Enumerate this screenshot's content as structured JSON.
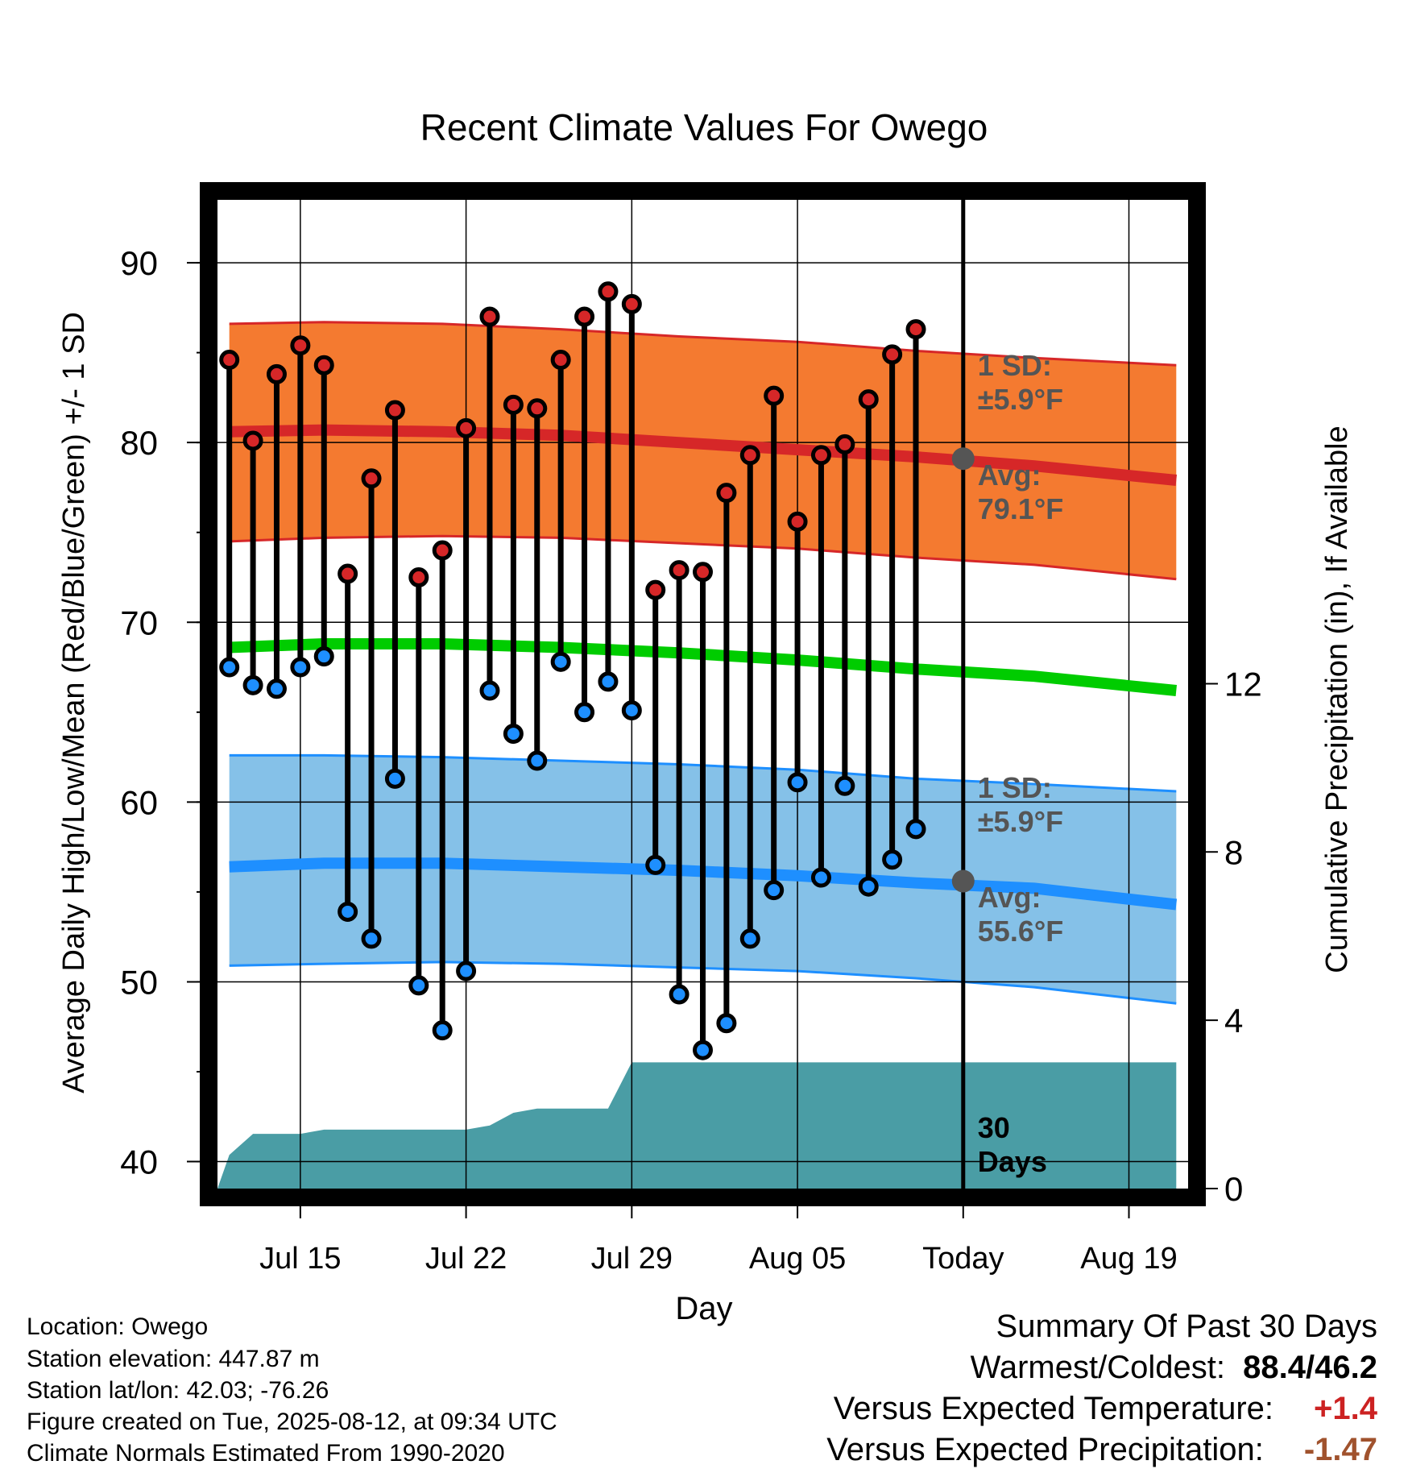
{
  "chart_data": {
    "type": "line",
    "title": "Recent Climate Values For Owego",
    "xlabel": "Day",
    "ylabel": "Average Daily High/Low/Mean (Red/Blue/Green) +/- 1 SD",
    "y2label": "Cumulative Precipitation (in), If Available",
    "x_tick_labels": [
      {
        "day": 4,
        "label": "Jul 15"
      },
      {
        "day": 11,
        "label": "Jul 22"
      },
      {
        "day": 18,
        "label": "Jul 29"
      },
      {
        "day": 25,
        "label": "Aug 05"
      },
      {
        "day": 32,
        "label": "Today"
      },
      {
        "day": 39,
        "label": "Aug 19"
      }
    ],
    "xlim": [
      0.5,
      41.5
    ],
    "ylim": [
      38.5,
      93.5
    ],
    "yticks": [
      40,
      50,
      60,
      70,
      80,
      90
    ],
    "y2lim": [
      0,
      23.5
    ],
    "y2ticks": [
      0,
      4,
      8,
      12
    ],
    "observed_days": [
      1,
      2,
      3,
      4,
      5,
      6,
      7,
      8,
      9,
      10,
      11,
      12,
      13,
      14,
      15,
      16,
      17,
      18,
      19,
      20,
      21,
      22,
      23,
      24,
      25,
      26,
      27,
      28,
      29,
      30,
      31
    ],
    "daily_high": [
      84.6,
      80.1,
      83.8,
      85.4,
      84.3,
      72.7,
      78.0,
      81.8,
      72.5,
      74.0,
      80.8,
      87.0,
      82.1,
      81.9,
      84.6,
      87.0,
      88.4,
      87.7,
      71.8,
      72.9,
      72.8,
      77.2,
      79.3,
      82.6,
      75.6,
      79.3,
      79.9,
      82.4,
      84.9,
      86.3,
      null
    ],
    "daily_low": [
      67.5,
      66.5,
      66.3,
      67.5,
      68.1,
      53.9,
      52.4,
      61.3,
      49.8,
      47.3,
      50.6,
      66.2,
      63.8,
      62.3,
      67.8,
      65.0,
      66.7,
      65.1,
      56.5,
      49.3,
      46.2,
      47.7,
      52.4,
      55.1,
      61.1,
      55.8,
      60.9,
      55.3,
      56.8,
      58.5,
      null
    ],
    "normals_days": [
      1,
      5,
      10,
      15,
      20,
      25,
      30,
      35,
      41
    ],
    "avg_high": [
      80.6,
      80.7,
      80.6,
      80.4,
      80.0,
      79.6,
      79.2,
      78.7,
      77.9
    ],
    "avg_high_sd_upper": [
      86.6,
      86.7,
      86.6,
      86.3,
      85.9,
      85.6,
      85.1,
      84.7,
      84.3
    ],
    "avg_high_sd_lower": [
      74.5,
      74.7,
      74.8,
      74.7,
      74.4,
      74.1,
      73.6,
      73.2,
      72.4
    ],
    "avg_mean": [
      68.6,
      68.8,
      68.8,
      68.6,
      68.3,
      67.9,
      67.4,
      67.0,
      66.2
    ],
    "avg_low": [
      56.4,
      56.6,
      56.6,
      56.4,
      56.2,
      55.9,
      55.5,
      55.2,
      54.3
    ],
    "avg_low_sd_upper": [
      62.6,
      62.6,
      62.5,
      62.3,
      62.1,
      61.8,
      61.3,
      61.0,
      60.6
    ],
    "avg_low_sd_lower": [
      50.9,
      51.0,
      51.1,
      51.0,
      50.8,
      50.6,
      50.2,
      49.7,
      48.8
    ],
    "precip_days": [
      0.5,
      1,
      2,
      3,
      4,
      5,
      6,
      7,
      8,
      9,
      10,
      11,
      12,
      13,
      14,
      15,
      16,
      17,
      18,
      19,
      20,
      21,
      22,
      23,
      24,
      25,
      26,
      27,
      28,
      29,
      30,
      31,
      32,
      33,
      34,
      35,
      36,
      37,
      38,
      39,
      40,
      41
    ],
    "cumulative_precip": [
      0,
      0.8,
      1.3,
      1.3,
      1.3,
      1.4,
      1.4,
      1.4,
      1.4,
      1.4,
      1.4,
      1.4,
      1.5,
      1.8,
      1.9,
      1.9,
      1.9,
      1.9,
      3.0,
      3.0,
      3.0,
      3.0,
      3.0,
      3.0,
      3.0,
      3.0,
      3.0,
      3.0,
      3.0,
      3.0,
      3.0,
      3.0,
      3.0,
      3.0,
      3.0,
      3.0,
      3.0,
      3.0,
      3.0,
      3.0,
      3.0,
      3.0
    ],
    "today_day": 32,
    "annotations": {
      "high_sd_label": [
        "1 SD:",
        "±5.9°F"
      ],
      "high_avg_label": [
        "Avg:",
        "79.1°F"
      ],
      "high_avg_value": 79.1,
      "low_sd_label": [
        "1 SD:",
        "±5.9°F"
      ],
      "low_avg_label": [
        "Avg:",
        "55.6°F"
      ],
      "low_avg_value": 55.6,
      "window_label": [
        "30",
        "Days"
      ]
    },
    "colors": {
      "high_band": "#f47a30",
      "high_line": "#d62728",
      "mean_line": "#00cc00",
      "low_band": "#85c1e8",
      "low_line": "#1e8fff",
      "high_marker": "#d62728",
      "low_marker": "#1e8fff",
      "precip": "#4a9da5",
      "annotation": "#555555",
      "summary_temp": "#cc2222",
      "summary_precip": "#a0522d"
    }
  },
  "station_info": [
    "Location: Owego",
    "Station elevation: 447.87 m",
    "Station lat/lon: 42.03; -76.26",
    "Figure created on Tue, 2025-08-12, at 09:34 UTC",
    "Climate Normals Estimated From 1990-2020"
  ],
  "summary": {
    "title": "Summary Of Past 30 Days",
    "warmest_coldest_label": "Warmest/Coldest:",
    "warmest_coldest_value": "88.4/46.2",
    "temp_label": "Versus Expected Temperature:",
    "temp_value": "+1.4",
    "precip_label": "Versus Expected Precipitation:",
    "precip_value": "-1.47"
  }
}
